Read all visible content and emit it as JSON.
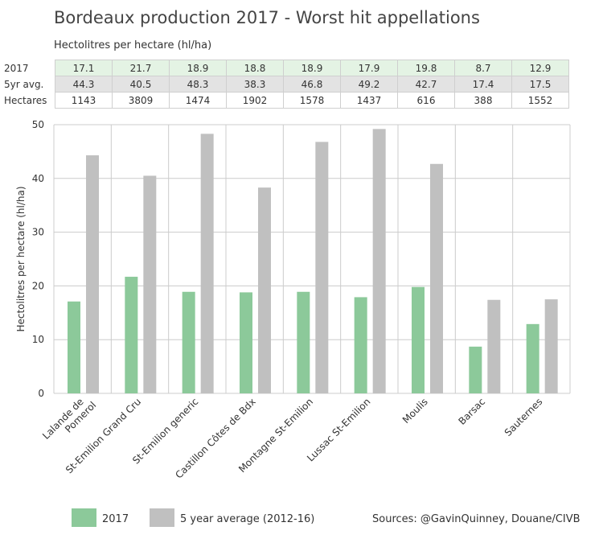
{
  "title": "Bordeaux production 2017 - Worst hit appellations",
  "subtitle": "Hectolitres per hectare (hl/ha)",
  "table": {
    "rows": [
      {
        "label": "2017",
        "values": [
          "17.1",
          "21.7",
          "18.9",
          "18.8",
          "18.9",
          "17.9",
          "19.8",
          "8.7",
          "12.9"
        ]
      },
      {
        "label": "5yr avg.",
        "values": [
          "44.3",
          "40.5",
          "48.3",
          "38.3",
          "46.8",
          "49.2",
          "42.7",
          "17.4",
          "17.5"
        ]
      },
      {
        "label": "Hectares",
        "values": [
          "1143",
          "3809",
          "1474",
          "1902",
          "1578",
          "1437",
          "616",
          "388",
          "1552"
        ]
      }
    ]
  },
  "legend": {
    "item_2017": "2017",
    "item_avg": "5 year average (2012-16)"
  },
  "source": "Sources: @GavinQuinney, Douane/CIVB",
  "colors": {
    "series_2017": "#8cc99a",
    "series_avg": "#c0c0c0",
    "grid": "#cccccc"
  },
  "chart_data": {
    "type": "bar",
    "categories": [
      "Lalande de Pomerol",
      "St-Emilion Grand Cru",
      "St-Emilion generic",
      "Castillon Côtes de Bdx",
      "Montagne St-Emilion",
      "Lussac St-Emilion",
      "Moulis",
      "Barsac",
      "Sauternes"
    ],
    "series": [
      {
        "name": "2017",
        "values": [
          17.1,
          21.7,
          18.9,
          18.8,
          18.9,
          17.9,
          19.8,
          8.7,
          12.9
        ]
      },
      {
        "name": "5 year average (2012-16)",
        "values": [
          44.3,
          40.5,
          48.3,
          38.3,
          46.8,
          49.2,
          42.7,
          17.4,
          17.5
        ]
      }
    ],
    "ylabel": "Hectolitres per hectare (hl/ha)",
    "xlabel": "",
    "ylim": [
      0,
      50
    ],
    "yticks": [
      "0",
      "10",
      "20",
      "30",
      "40",
      "50"
    ],
    "grid": true,
    "legend_position": "bottom-left"
  }
}
